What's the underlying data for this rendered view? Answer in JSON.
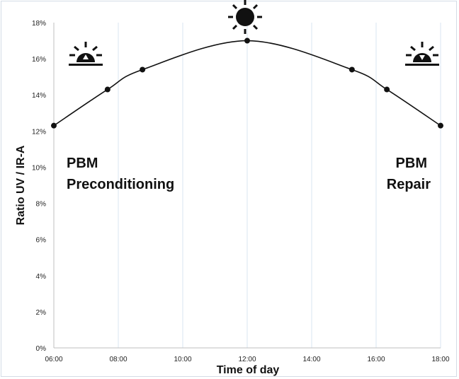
{
  "chart_data": {
    "type": "line",
    "title": "",
    "xlabel": "Time of day",
    "ylabel": "Ratio UV / IR-A",
    "x_ticks": [
      "06:00",
      "08:00",
      "10:00",
      "12:00",
      "14:00",
      "16:00",
      "18:00"
    ],
    "y_ticks": [
      "0%",
      "2%",
      "4%",
      "6%",
      "8%",
      "10%",
      "12%",
      "14%",
      "16%",
      "18%"
    ],
    "xlim_hours": [
      6,
      18
    ],
    "ylim": [
      0,
      18
    ],
    "grid": "vertical",
    "series": [
      {
        "x": [
          "06:00",
          "07:40",
          "08:45",
          "12:00",
          "15:15",
          "16:20",
          "18:00"
        ],
        "values": [
          12.3,
          14.3,
          15.4,
          17.0,
          15.4,
          14.3,
          12.3
        ]
      }
    ],
    "annotations": [
      {
        "lines": [
          "PBM",
          "Preconditioning"
        ],
        "anchor": "left"
      },
      {
        "lines": [
          "PBM",
          "Repair"
        ],
        "anchor": "right"
      }
    ],
    "icons": [
      "sunrise-icon",
      "sun-icon",
      "sunset-icon"
    ]
  }
}
